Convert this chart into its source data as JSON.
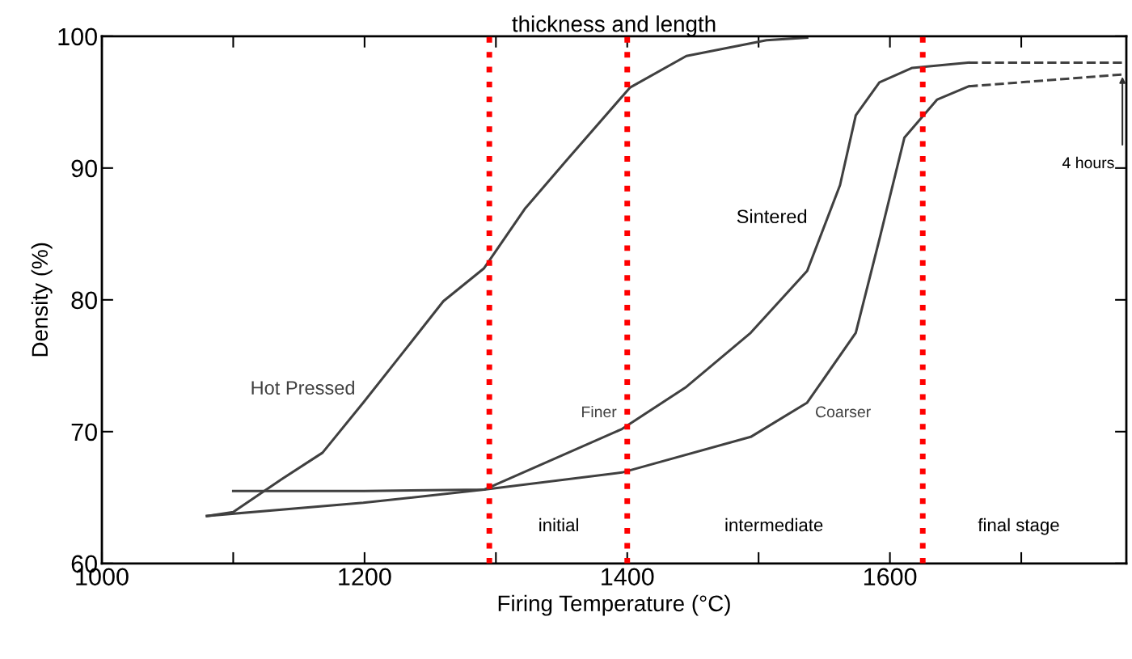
{
  "chart_data": {
    "type": "line",
    "title": "thickness and length",
    "xlabel": "Firing Temperature (°C)",
    "ylabel": "Density (%)",
    "series": [
      {
        "name": "Hot Pressed",
        "color": "#404040",
        "x": [
          1080,
          1100,
          1137,
          1168,
          1199,
          1230,
          1260,
          1291,
          1322,
          1353,
          1402,
          1445,
          1506,
          1537
        ],
        "values": [
          63.6,
          63.9,
          66.4,
          68.4,
          72.2,
          76.1,
          79.9,
          82.4,
          86.9,
          90.5,
          96.1,
          98.5,
          99.7,
          99.9
        ]
      },
      {
        "name": "Finer",
        "color": "#404040",
        "x": [
          1100,
          1200,
          1291,
          1396,
          1445,
          1494,
          1537,
          1562,
          1574,
          1592,
          1617,
          1660
        ],
        "values": [
          65.5,
          65.5,
          65.6,
          70.2,
          73.4,
          77.5,
          82.2,
          88.7,
          94.0,
          96.5,
          97.6,
          98.0
        ]
      },
      {
        "type": "line",
        "line_style": "dashed",
        "color": "#404040",
        "x": [
          1660,
          1777
        ],
        "values": [
          98.0,
          98.0
        ]
      },
      {
        "name": "Coarser",
        "color": "#404040",
        "x": [
          1080,
          1199,
          1291,
          1396,
          1494,
          1537,
          1574,
          1592,
          1611,
          1636,
          1660
        ],
        "values": [
          63.6,
          64.6,
          65.6,
          66.9,
          69.6,
          72.2,
          77.5,
          84.6,
          92.3,
          95.2,
          96.2
        ]
      },
      {
        "type": "line",
        "line_style": "dashed",
        "color": "#404040",
        "x": [
          1660,
          1777
        ],
        "values": [
          96.2,
          97.1
        ]
      }
    ],
    "xlim": [
      1000,
      1780
    ],
    "ylim": [
      60,
      100
    ],
    "xticks": [
      1000,
      {
        "value": 1100,
        "label": null
      },
      1200,
      {
        "value": 1300,
        "label": null
      },
      1400,
      {
        "value": 1500,
        "label": null
      },
      1600,
      {
        "value": 1700,
        "label": null
      }
    ],
    "yticks": [
      60,
      70,
      80,
      90,
      100
    ],
    "ref_lines": [
      {
        "axis": "x",
        "value": 1295,
        "color": "#ff0000",
        "line_style": "dotted"
      },
      {
        "axis": "x",
        "value": 1400,
        "color": "#ff0000",
        "line_style": "dotted"
      },
      {
        "axis": "x",
        "value": 1625,
        "color": "#ff0000",
        "line_style": "dotted"
      }
    ],
    "annotations": [
      "Sintered",
      "initial",
      "intermediate",
      "final stage",
      {
        "text": "4 hours",
        "x": 1777,
        "y": 97.1
      }
    ],
    "grid": false,
    "marker": "none"
  }
}
